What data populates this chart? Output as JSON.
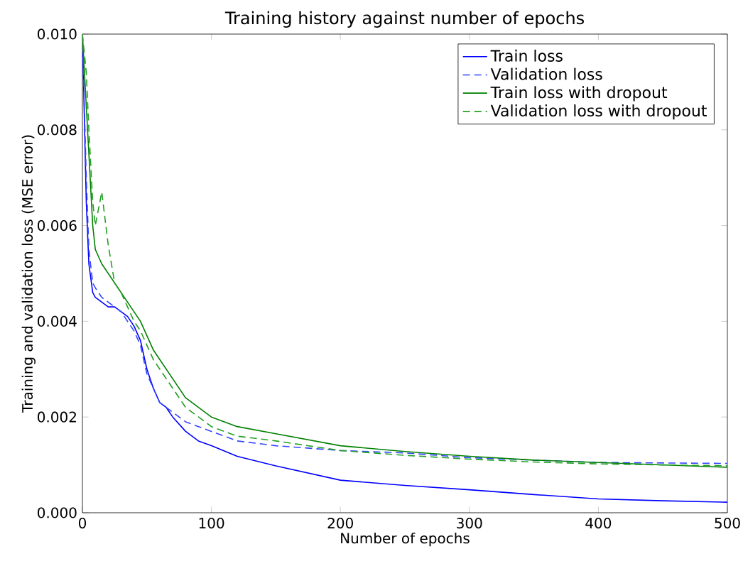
{
  "chart_data": {
    "type": "line",
    "title": "Training history against number of epochs",
    "xlabel": "Number of epochs",
    "ylabel": "Training and validation loss (MSE error)",
    "x": [
      0,
      3,
      5,
      8,
      10,
      15,
      20,
      25,
      30,
      35,
      40,
      45,
      50,
      55,
      60,
      65,
      70,
      80,
      90,
      100,
      120,
      150,
      200,
      250,
      300,
      350,
      400,
      450,
      500
    ],
    "series": [
      {
        "name": "Train loss",
        "color": "#0000ff",
        "line_style": "solid",
        "values": [
          0.01,
          0.0065,
          0.0052,
          0.0046,
          0.0045,
          0.0044,
          0.0043,
          0.0043,
          0.0042,
          0.0041,
          0.0039,
          0.0036,
          0.003,
          0.0026,
          0.0023,
          0.0022,
          0.002,
          0.0017,
          0.0015,
          0.0014,
          0.00118,
          0.00098,
          0.00068,
          0.00057,
          0.00048,
          0.00038,
          0.00029,
          0.00025,
          0.00022
        ]
      },
      {
        "name": "Validation loss",
        "color": "#3344ff",
        "line_style": "dashed",
        "values": [
          0.01,
          0.007,
          0.0055,
          0.0048,
          0.0047,
          0.0045,
          0.0044,
          0.0043,
          0.0042,
          0.004,
          0.0038,
          0.0035,
          0.0029,
          0.0026,
          0.0023,
          0.0022,
          0.0021,
          0.0019,
          0.0018,
          0.0017,
          0.0015,
          0.0014,
          0.0013,
          0.00125,
          0.00115,
          0.0011,
          0.00105,
          0.00104,
          0.00103
        ]
      },
      {
        "name": "Train loss with dropout",
        "color": "#008000",
        "line_style": "solid",
        "values": [
          0.01,
          0.0085,
          0.0075,
          0.006,
          0.0055,
          0.0052,
          0.005,
          0.0048,
          0.0046,
          0.0044,
          0.0042,
          0.004,
          0.0037,
          0.0034,
          0.0032,
          0.003,
          0.0028,
          0.0024,
          0.0022,
          0.002,
          0.0018,
          0.00165,
          0.0014,
          0.00128,
          0.00118,
          0.0011,
          0.00105,
          0.001,
          0.00095
        ]
      },
      {
        "name": "Validation loss with dropout",
        "color": "#22a022",
        "line_style": "dashed",
        "values": [
          0.01,
          0.0092,
          0.008,
          0.0065,
          0.006,
          0.0067,
          0.0056,
          0.0048,
          0.0046,
          0.0043,
          0.004,
          0.0038,
          0.0035,
          0.0032,
          0.003,
          0.0028,
          0.0026,
          0.0022,
          0.002,
          0.0018,
          0.0016,
          0.0015,
          0.0013,
          0.0012,
          0.00112,
          0.00106,
          0.00102,
          0.001,
          0.00098
        ]
      }
    ],
    "xlim": [
      0,
      500
    ],
    "ylim": [
      0,
      0.01
    ],
    "xticks": [
      0,
      100,
      200,
      300,
      400,
      500
    ],
    "yticks": [
      {
        "value": 0,
        "label": "0.000"
      },
      {
        "value": 0.002,
        "label": "0.002"
      },
      {
        "value": 0.004,
        "label": "0.004"
      },
      {
        "value": 0.006,
        "label": "0.006"
      },
      {
        "value": 0.008,
        "label": "0.008"
      },
      {
        "value": 0.01,
        "label": "0.010"
      }
    ],
    "grid": false,
    "legend": "top right",
    "marker": "none"
  }
}
